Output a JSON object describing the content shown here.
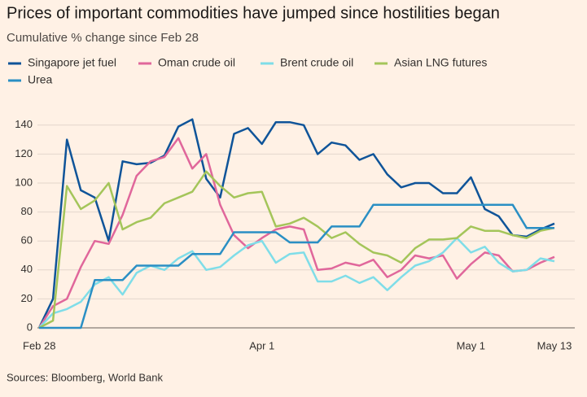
{
  "chart_data": {
    "type": "line",
    "title": "Prices of important commodities have jumped since hostilities began",
    "subtitle": "Cumulative % change since Feb 28",
    "source": "Sources: Bloomberg, World Bank",
    "categories": [
      "Feb 28",
      null,
      null,
      null,
      null,
      null,
      null,
      null,
      null,
      null,
      null,
      null,
      null,
      null,
      null,
      null,
      "Apr 1",
      null,
      null,
      null,
      null,
      null,
      null,
      null,
      null,
      null,
      null,
      null,
      null,
      null,
      null,
      "May 1",
      null,
      null,
      null,
      null,
      null,
      "May 13"
    ],
    "ylim": [
      0,
      150
    ],
    "yticks": [
      0,
      20,
      40,
      60,
      80,
      100,
      120,
      140
    ],
    "grid": true,
    "series": [
      {
        "name": "Singapore jet fuel",
        "color": "#0f5499",
        "values": [
          0,
          20,
          130,
          95,
          90,
          60,
          115,
          113,
          114,
          119,
          139,
          144,
          103,
          90,
          134,
          138,
          127,
          142,
          142,
          140,
          120,
          128,
          126,
          116,
          120,
          106,
          97,
          100,
          100,
          93,
          93,
          104,
          82,
          77,
          64,
          63,
          68,
          72
        ]
      },
      {
        "name": "Oman crude oil",
        "color": "#e0679b",
        "values": [
          0,
          15,
          20,
          42,
          60,
          58,
          78,
          105,
          115,
          118,
          131,
          110,
          120,
          85,
          64,
          55,
          62,
          68,
          70,
          68,
          40,
          41,
          45,
          43,
          47,
          35,
          40,
          50,
          48,
          50,
          34,
          44,
          52,
          50,
          39,
          40,
          45,
          49
        ]
      },
      {
        "name": "Brent crude oil",
        "color": "#7fdde8",
        "values": [
          0,
          10,
          13,
          18,
          30,
          35,
          23,
          38,
          43,
          40,
          48,
          53,
          40,
          42,
          50,
          57,
          60,
          45,
          51,
          52,
          32,
          32,
          36,
          31,
          35,
          26,
          35,
          43,
          46,
          52,
          62,
          52,
          56,
          45,
          39,
          40,
          48,
          46
        ]
      },
      {
        "name": "Asian LNG futures",
        "color": "#a4c55a",
        "values": [
          0,
          5,
          98,
          82,
          88,
          100,
          68,
          73,
          76,
          86,
          90,
          94,
          108,
          98,
          90,
          93,
          94,
          70,
          72,
          76,
          70,
          62,
          66,
          58,
          52,
          50,
          45,
          55,
          61,
          61,
          62,
          70,
          67,
          67,
          64,
          62,
          67,
          69
        ]
      },
      {
        "name": "Urea",
        "color": "#2a8fc4",
        "values": [
          0,
          0,
          0,
          0,
          33,
          33,
          33,
          43,
          43,
          43,
          43,
          51,
          51,
          51,
          66,
          66,
          66,
          66,
          59,
          59,
          59,
          70,
          70,
          70,
          85,
          85,
          85,
          85,
          85,
          85,
          85,
          85,
          85,
          85,
          85,
          69,
          69,
          69
        ]
      }
    ]
  }
}
